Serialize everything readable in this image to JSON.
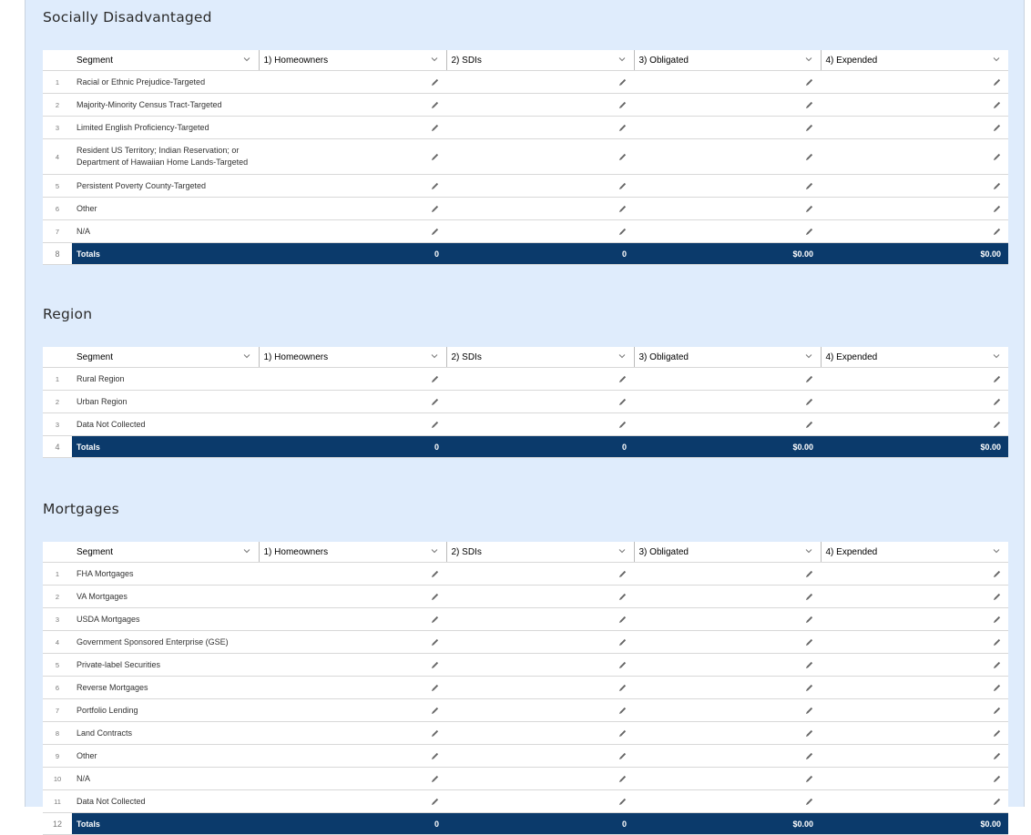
{
  "columns": [
    "Segment",
    "1) Homeowners",
    "2) SDIs",
    "3) Obligated",
    "4) Expended"
  ],
  "colors": {
    "panel_bg": "#dfecfc",
    "totals_bg": "#0b3a6b"
  },
  "icons": {
    "edit": "pencil-icon",
    "sort": "chevron-down-icon"
  },
  "sections": [
    {
      "title": "Socially Disadvantaged",
      "rows": [
        "Racial or Ethnic Prejudice-Targeted",
        "Majority-Minority Census Tract-Targeted",
        "Limited English Proficiency-Targeted",
        "Resident US Territory; Indian Reservation; or Department of Hawaiian Home Lands-Targeted",
        "Persistent Poverty County-Targeted",
        "Other",
        "N/A"
      ],
      "totals": {
        "label": "Totals",
        "homeowners": "0",
        "sdis": "0",
        "obligated": "$0.00",
        "expended": "$0.00"
      }
    },
    {
      "title": "Region",
      "rows": [
        "Rural Region",
        "Urban Region",
        "Data Not Collected"
      ],
      "totals": {
        "label": "Totals",
        "homeowners": "0",
        "sdis": "0",
        "obligated": "$0.00",
        "expended": "$0.00"
      }
    },
    {
      "title": "Mortgages",
      "rows": [
        "FHA Mortgages",
        "VA Mortgages",
        "USDA Mortgages",
        "Government Sponsored Enterprise (GSE)",
        "Private-label Securities",
        "Reverse Mortgages",
        "Portfolio Lending",
        "Land Contracts",
        "Other",
        "N/A",
        "Data Not Collected"
      ],
      "totals": {
        "label": "Totals",
        "homeowners": "0",
        "sdis": "0",
        "obligated": "$0.00",
        "expended": "$0.00"
      }
    }
  ]
}
